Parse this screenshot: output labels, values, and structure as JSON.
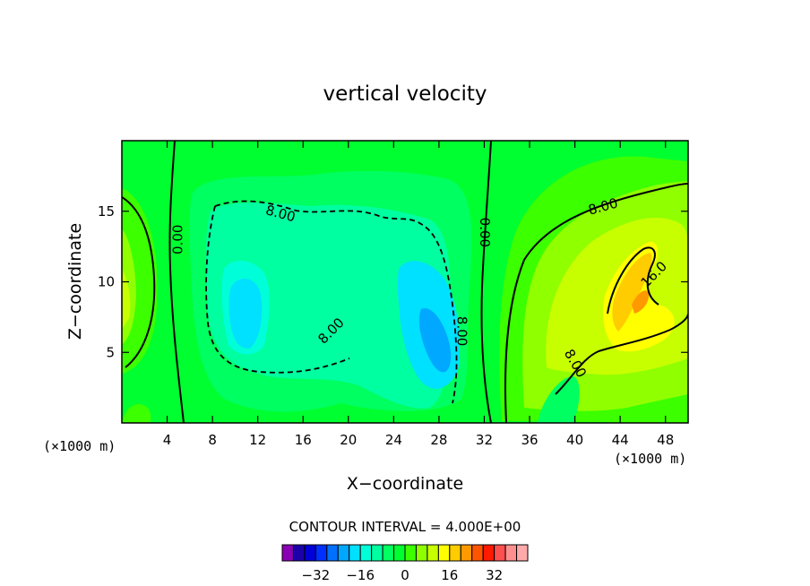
{
  "chart_data": {
    "type": "heatmap",
    "title": "vertical velocity",
    "xlabel": "X−coordinate",
    "ylabel": "Z−coordinate",
    "x_unit_label": "(×1000 m)",
    "y_unit_label": "(×1000 m)",
    "xlim": [
      0,
      50
    ],
    "ylim": [
      0,
      20
    ],
    "x_ticks": [
      4,
      8,
      12,
      16,
      20,
      24,
      28,
      32,
      36,
      40,
      44,
      48
    ],
    "y_ticks": [
      5,
      10,
      15
    ],
    "contour_interval_label": "CONTOUR INTERVAL = 4.000E+00",
    "contour_labels": [
      {
        "text": "0.00",
        "x": 5.0,
        "y": 13.0
      },
      {
        "text": "0.00",
        "x": 32.0,
        "y": 13.5
      },
      {
        "text": "8.00",
        "x": 14.0,
        "y": 14.8
      },
      {
        "text": "8.00",
        "x": 18.5,
        "y": 6.5
      },
      {
        "text": "8.00",
        "x": 30.0,
        "y": 6.5
      },
      {
        "text": "8.00",
        "x": 42.5,
        "y": 15.3
      },
      {
        "text": "8.00",
        "x": 40.0,
        "y": 4.2
      },
      {
        "text": "16.0",
        "x": 47.0,
        "y": 10.5
      }
    ],
    "colorbar": {
      "levels": [
        -40,
        -36,
        -32,
        -28,
        -24,
        -20,
        -16,
        -12,
        -8,
        -4,
        0,
        4,
        8,
        12,
        16,
        20,
        24,
        28,
        32,
        36,
        40
      ],
      "tick_labels": [
        "-32",
        "-16",
        "0",
        "16",
        "32"
      ],
      "tick_values": [
        -32,
        -16,
        0,
        16,
        32
      ],
      "colors": [
        "#8a00b5",
        "#1c00a8",
        "#0000d8",
        "#0030ff",
        "#0070ff",
        "#00a8ff",
        "#00e0ff",
        "#00ffd8",
        "#00ffa0",
        "#00ff60",
        "#00ff30",
        "#3cff00",
        "#90ff00",
        "#c8ff00",
        "#ffff00",
        "#ffcc00",
        "#ff9900",
        "#ff5500",
        "#ff1a00",
        "#ff5050",
        "#ff9090",
        "#ffaaaa"
      ]
    },
    "grid": false
  }
}
